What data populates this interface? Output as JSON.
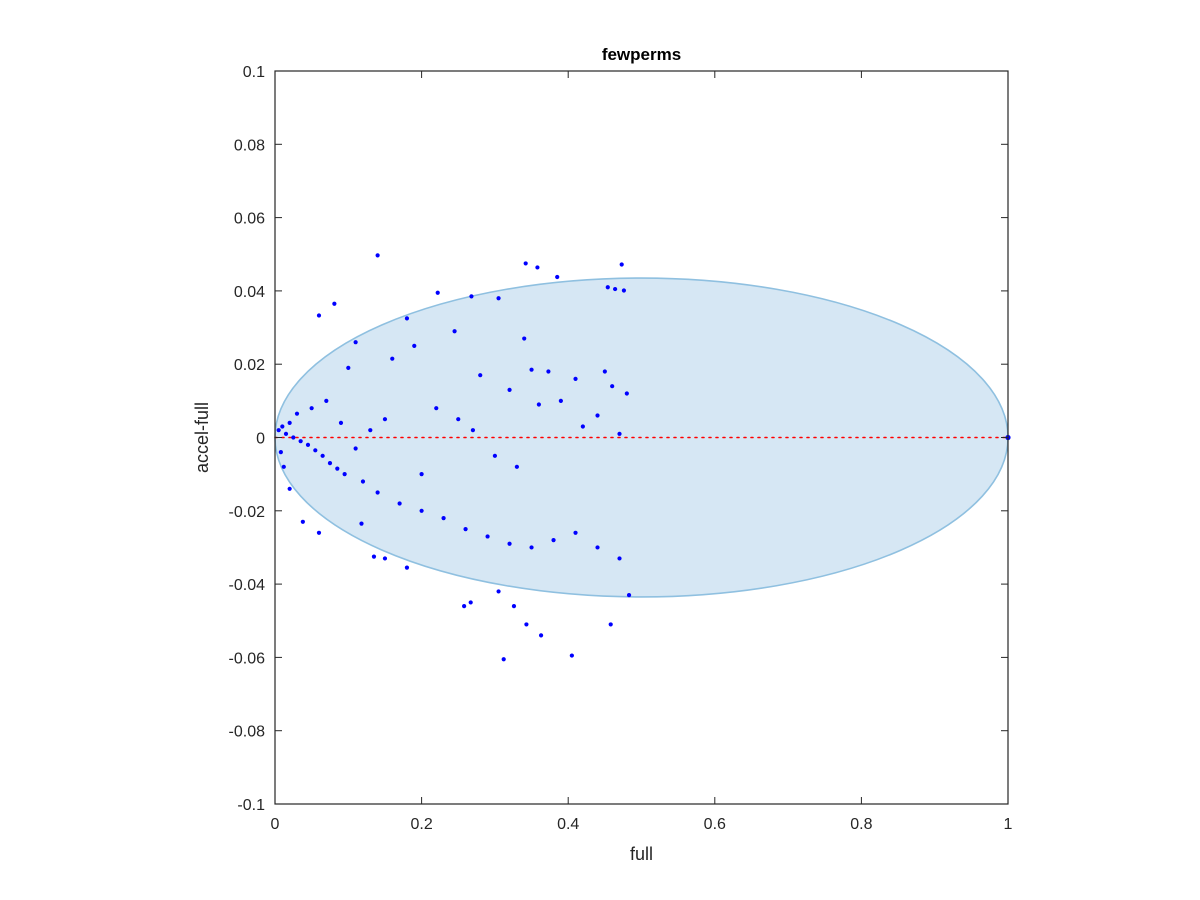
{
  "chart_data": {
    "type": "scatter",
    "title": "fewperms",
    "xlabel": "full",
    "ylabel": "accel-full",
    "xlim": [
      0,
      1
    ],
    "ylim": [
      -0.1,
      0.1
    ],
    "x_ticks": [
      0,
      0.2,
      0.4,
      0.6,
      0.8,
      1
    ],
    "x_tick_labels": [
      "0",
      "0.2",
      "0.4",
      "0.6",
      "0.8",
      "1"
    ],
    "y_ticks": [
      0.1,
      0.08,
      0.06,
      0.04,
      0.02,
      0,
      -0.02,
      -0.04,
      -0.06,
      -0.08,
      -0.1
    ],
    "y_tick_labels": [
      "0.1",
      "0.08",
      "0.06",
      "0.04",
      "0.02",
      "0",
      "-0.02",
      "-0.04",
      "-0.06",
      "-0.08",
      "-0.1"
    ],
    "grid": false,
    "legend": "none",
    "region": {
      "shape": "half-ellipse",
      "x_range": [
        0,
        1
      ],
      "y_range": [
        -0.0435,
        0.0435
      ],
      "fill_color": "#d6e7f4",
      "edge_color": "#8fc0e0"
    },
    "reference_line": {
      "y": 0,
      "x_range": [
        0,
        1
      ],
      "style": "dotted",
      "color": "#ff0000"
    },
    "series": [
      {
        "marker_color": "#0000ff",
        "points": [
          [
            0.14,
            0.0497
          ],
          [
            0.342,
            0.0475
          ],
          [
            0.358,
            0.0464
          ],
          [
            0.385,
            0.0438
          ],
          [
            0.473,
            0.0472
          ],
          [
            0.454,
            0.041
          ],
          [
            0.464,
            0.0405
          ],
          [
            0.476,
            0.0401
          ],
          [
            0.081,
            0.0365
          ],
          [
            0.06,
            0.0333
          ],
          [
            0.11,
            0.026
          ],
          [
            0.18,
            0.0325
          ],
          [
            0.222,
            0.0395
          ],
          [
            0.305,
            0.038
          ],
          [
            0.268,
            0.0385
          ],
          [
            0.34,
            0.027
          ],
          [
            0.373,
            0.018
          ],
          [
            0.245,
            0.029
          ],
          [
            0.19,
            0.025
          ],
          [
            0.16,
            0.0215
          ],
          [
            0.1,
            0.019
          ],
          [
            0.35,
            0.0185
          ],
          [
            0.28,
            0.017
          ],
          [
            0.32,
            0.013
          ],
          [
            0.41,
            0.016
          ],
          [
            0.45,
            0.018
          ],
          [
            0.46,
            0.014
          ],
          [
            0.48,
            0.012
          ],
          [
            0.07,
            0.01
          ],
          [
            0.05,
            0.008
          ],
          [
            0.03,
            0.0065
          ],
          [
            0.02,
            0.004
          ],
          [
            0.01,
            0.003
          ],
          [
            0.005,
            0.002
          ],
          [
            0.015,
            0.001
          ],
          [
            0.025,
            0.0
          ],
          [
            0.035,
            -0.001
          ],
          [
            0.045,
            -0.002
          ],
          [
            0.055,
            -0.0035
          ],
          [
            0.065,
            -0.005
          ],
          [
            0.075,
            -0.007
          ],
          [
            0.085,
            -0.0085
          ],
          [
            0.095,
            -0.01
          ],
          [
            0.12,
            -0.012
          ],
          [
            0.14,
            -0.015
          ],
          [
            0.17,
            -0.018
          ],
          [
            0.2,
            -0.02
          ],
          [
            0.23,
            -0.022
          ],
          [
            0.26,
            -0.025
          ],
          [
            0.29,
            -0.027
          ],
          [
            0.32,
            -0.029
          ],
          [
            0.35,
            -0.03
          ],
          [
            0.38,
            -0.028
          ],
          [
            0.41,
            -0.026
          ],
          [
            0.44,
            -0.03
          ],
          [
            0.47,
            -0.033
          ],
          [
            0.483,
            -0.043
          ],
          [
            0.458,
            -0.051
          ],
          [
            0.405,
            -0.0595
          ],
          [
            0.312,
            -0.0605
          ],
          [
            0.363,
            -0.054
          ],
          [
            0.343,
            -0.051
          ],
          [
            0.326,
            -0.046
          ],
          [
            0.305,
            -0.042
          ],
          [
            0.258,
            -0.046
          ],
          [
            0.267,
            -0.045
          ],
          [
            0.18,
            -0.0355
          ],
          [
            0.15,
            -0.033
          ],
          [
            0.135,
            -0.0325
          ],
          [
            0.118,
            -0.0235
          ],
          [
            0.06,
            -0.026
          ],
          [
            0.038,
            -0.023
          ],
          [
            0.02,
            -0.014
          ],
          [
            0.012,
            -0.008
          ],
          [
            0.008,
            -0.004
          ],
          [
            0.22,
            0.008
          ],
          [
            0.25,
            0.005
          ],
          [
            0.27,
            0.002
          ],
          [
            0.3,
            -0.005
          ],
          [
            0.33,
            -0.008
          ],
          [
            0.36,
            0.009
          ],
          [
            0.39,
            0.01
          ],
          [
            0.42,
            0.003
          ],
          [
            0.44,
            0.006
          ],
          [
            0.47,
            0.001
          ],
          [
            0.15,
            0.005
          ],
          [
            0.13,
            0.002
          ],
          [
            0.11,
            -0.003
          ],
          [
            0.09,
            0.004
          ],
          [
            0.2,
            -0.01
          ]
        ]
      }
    ],
    "edge_point": [
      1.0,
      0.0
    ]
  }
}
